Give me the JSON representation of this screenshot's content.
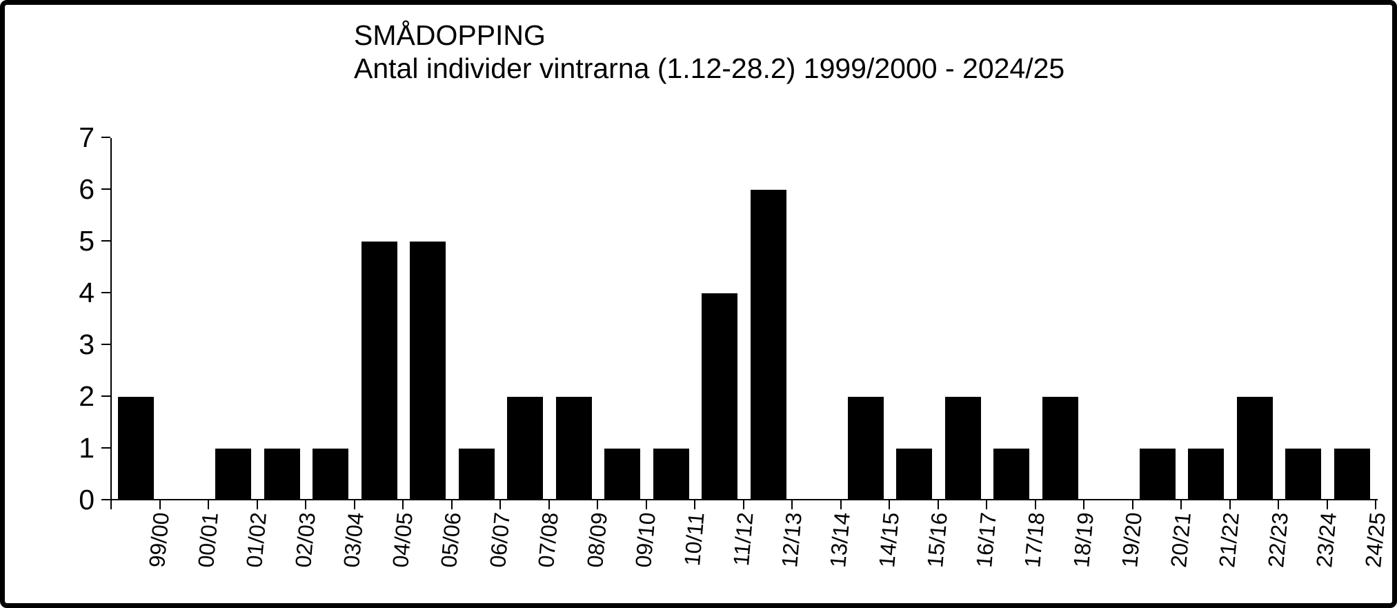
{
  "chart_data": {
    "type": "bar",
    "title": "SMÅDOPPING",
    "subtitle": "Antal individer vintrarna (1.12-28.2) 1999/2000 - 2024/25",
    "categories": [
      "99/00",
      "00/01",
      "01/02",
      "02/03",
      "03/04",
      "04/05",
      "05/06",
      "06/07",
      "07/08",
      "08/09",
      "09/10",
      "10/11",
      "11/12",
      "12/13",
      "13/14",
      "14/15",
      "15/16",
      "16/17",
      "17/18",
      "18/19",
      "19/20",
      "20/21",
      "21/22",
      "22/23",
      "23/24",
      "24/25"
    ],
    "values": [
      2,
      0,
      1,
      1,
      1,
      5,
      5,
      1,
      2,
      2,
      1,
      1,
      4,
      6,
      0,
      2,
      1,
      2,
      1,
      2,
      0,
      1,
      1,
      2,
      1,
      1
    ],
    "xlabel": "",
    "ylabel": "",
    "ylim": [
      0,
      7
    ],
    "yticks": [
      0,
      1,
      2,
      3,
      4,
      5,
      6,
      7
    ],
    "grid": false,
    "legend": false,
    "bar_color": "#000000",
    "axis_color": "#000000",
    "text_color": "#000000",
    "background_color": "#ffffff",
    "frame_color": "#000000"
  }
}
